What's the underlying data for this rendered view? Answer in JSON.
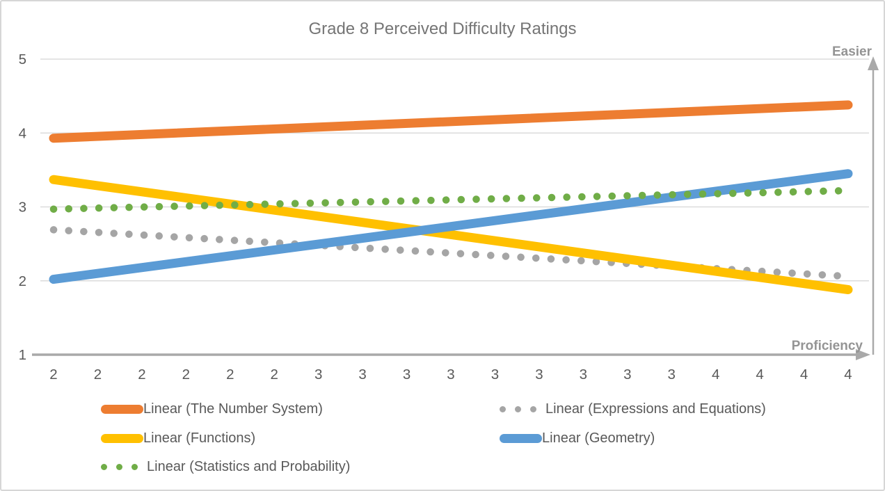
{
  "title": "Grade 8 Perceived Difficulty Ratings",
  "chart_data": {
    "type": "line",
    "title": "Grade 8 Perceived Difficulty Ratings",
    "xlabel": "Proficiency",
    "ylabel_annotation": "Easier",
    "grid": true,
    "legend_position": "bottom",
    "ylim": [
      1,
      5
    ],
    "y_ticks": [
      1,
      2,
      3,
      4,
      5
    ],
    "x_tick_labels": [
      2,
      2,
      2,
      2,
      2,
      2,
      3,
      3,
      3,
      3,
      3,
      3,
      3,
      3,
      3,
      4,
      4,
      4,
      4
    ],
    "series": [
      {
        "name": "Linear (The Number System)",
        "color": "#ED7D31",
        "style": "solid",
        "trend_start": 3.93,
        "trend_end": 4.38
      },
      {
        "name": "Linear (Expressions and Equations)",
        "color": "#A5A5A5",
        "style": "dotted",
        "trend_start": 2.69,
        "trend_end": 2.06
      },
      {
        "name": "Linear (Functions)",
        "color": "#FFC000",
        "style": "solid",
        "trend_start": 3.37,
        "trend_end": 1.88
      },
      {
        "name": "Linear (Geometry)",
        "color": "#5B9BD5",
        "style": "solid",
        "trend_start": 2.02,
        "trend_end": 3.45
      },
      {
        "name": "Linear (Statistics and Probability)",
        "color": "#70AD47",
        "style": "dotted",
        "trend_start": 2.97,
        "trend_end": 3.22
      }
    ],
    "colors": {
      "gridline": "#DBDBDB",
      "axis": "#A9A9A9",
      "title_text": "#757575",
      "tick_text": "#595959",
      "arrow_label_text": "#949494"
    }
  }
}
